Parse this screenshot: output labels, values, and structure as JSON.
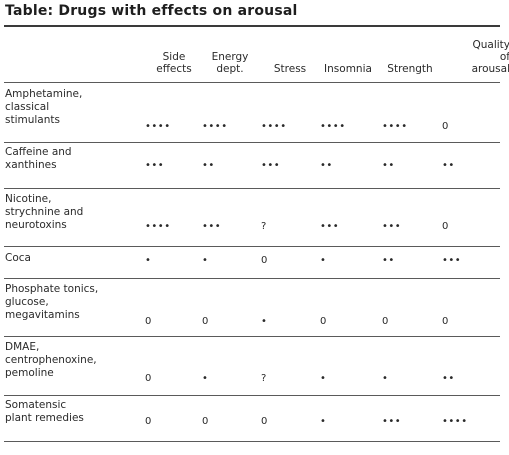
{
  "title": "Table: Drugs with effects on arousal",
  "columns": [
    {
      "lines": [
        "Side",
        "effects"
      ]
    },
    {
      "lines": [
        "Energy",
        "dept."
      ]
    },
    {
      "lines": [
        "Stress"
      ]
    },
    {
      "lines": [
        "Insomnia"
      ]
    },
    {
      "lines": [
        "Strength"
      ]
    },
    {
      "lines": [
        "Quality",
        "of",
        "arousal"
      ]
    }
  ],
  "rows": [
    {
      "lines": [
        "Amphetamine,",
        "classical",
        "stimulants"
      ],
      "values": [
        "••••",
        "••••",
        "••••",
        "••••",
        "••••",
        "0"
      ]
    },
    {
      "lines": [
        "Caffeine and",
        "xanthines"
      ],
      "values": [
        "•••",
        "••",
        "•••",
        "••",
        "••",
        "••"
      ]
    },
    {
      "lines": [
        "Nicotine,",
        "strychnine and",
        "neurotoxins"
      ],
      "values": [
        "••••",
        "•••",
        "?",
        "•••",
        "•••",
        "0"
      ]
    },
    {
      "lines": [
        "Coca"
      ],
      "values": [
        "•",
        "•",
        "0",
        "•",
        "••",
        "•••"
      ]
    },
    {
      "lines": [
        "Phosphate tonics,",
        "glucose,",
        "megavitamins"
      ],
      "values": [
        "0",
        "0",
        "•",
        "0",
        "0",
        "0"
      ]
    },
    {
      "lines": [
        "DMAE,",
        "centrophenoxine,",
        "pemoline"
      ],
      "values": [
        "0",
        "•",
        "?",
        "•",
        "•",
        "••"
      ]
    },
    {
      "lines": [
        "Somatensic",
        "plant remedies"
      ],
      "values": [
        "0",
        "0",
        "0",
        "•",
        "•••",
        "••••"
      ]
    }
  ]
}
